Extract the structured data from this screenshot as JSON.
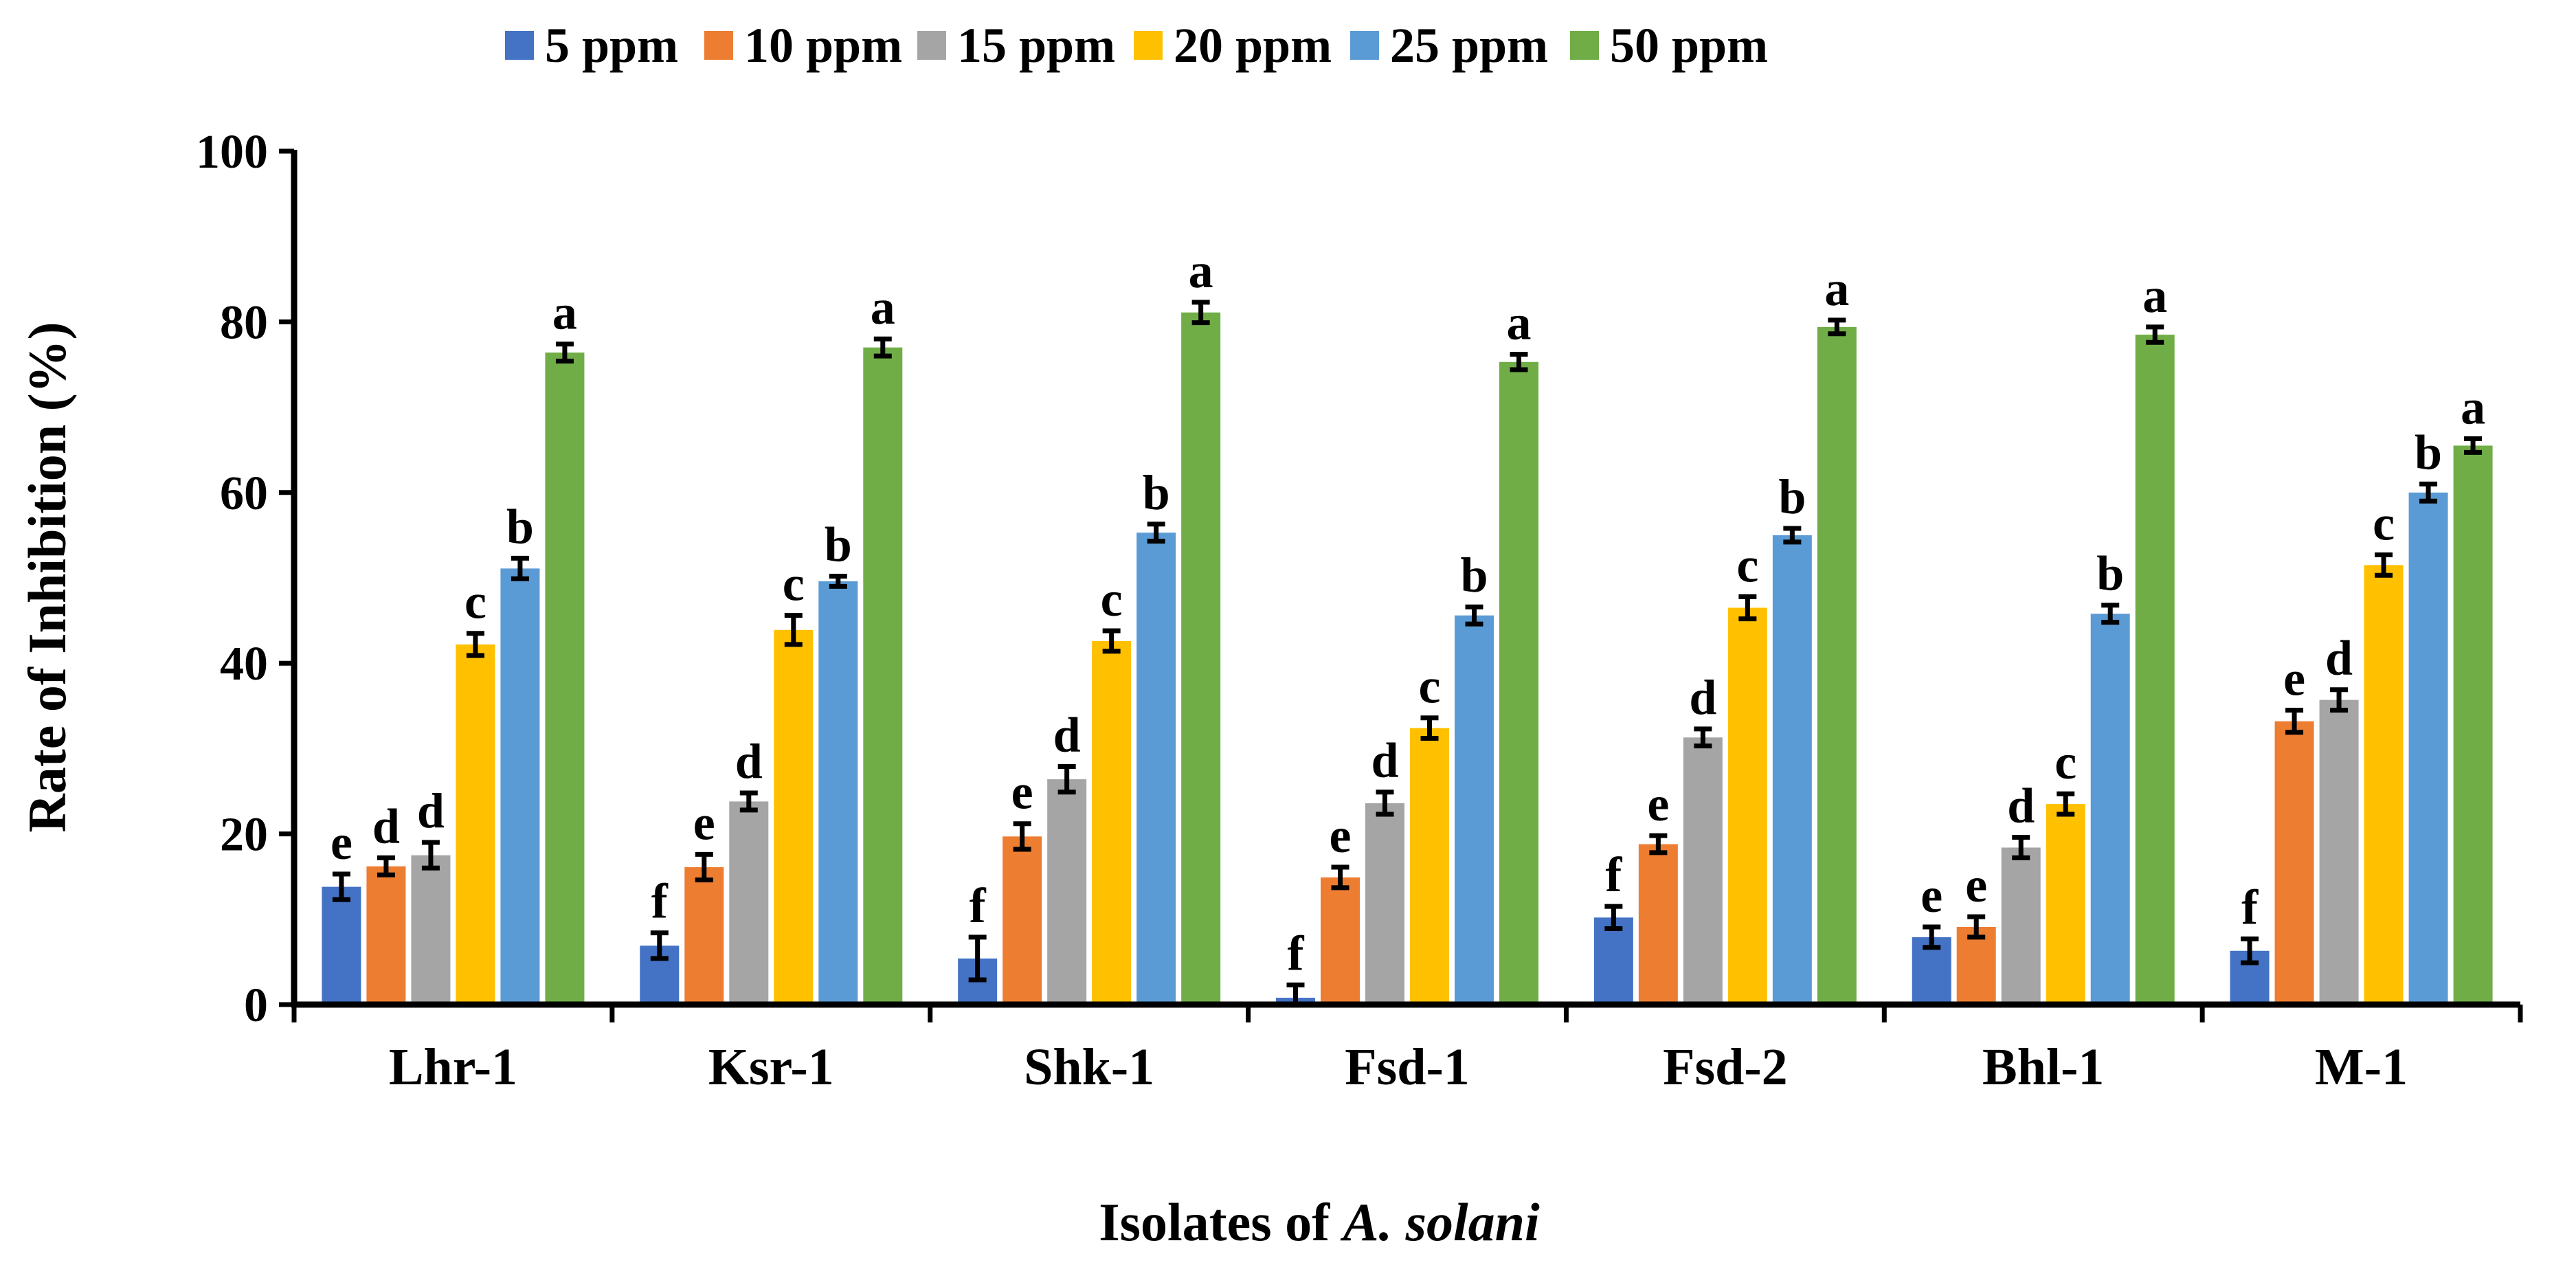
{
  "chart_data": {
    "type": "bar",
    "title": "",
    "xlabel_prefix": "Isolates of ",
    "xlabel_italic": "A. solani",
    "ylabel": "Rate of Inhibition (%)",
    "ylim": [
      0,
      100
    ],
    "yticks": [
      0,
      20,
      40,
      60,
      80,
      100
    ],
    "grid": false,
    "legend_position": "top",
    "categories": [
      "Lhr-1",
      "Ksr-1",
      "Shk-1",
      "Fsd-1",
      "Fsd-2",
      "Bhl-1",
      "M-1"
    ],
    "series": [
      {
        "name": "5 ppm",
        "color": "#4472C4",
        "values": [
          13.8,
          6.9,
          5.4,
          0.8,
          10.2,
          7.9,
          6.3
        ],
        "errors": [
          1.5,
          1.5,
          2.5,
          1.5,
          1.3,
          1.2,
          1.4
        ],
        "letters": [
          "e",
          "f",
          "f",
          "f",
          "f",
          "e",
          "f"
        ]
      },
      {
        "name": "10 ppm",
        "color": "#ED7D31",
        "values": [
          16.2,
          16.1,
          19.7,
          14.9,
          18.8,
          9.1,
          33.2
        ],
        "errors": [
          1.0,
          1.5,
          1.5,
          1.2,
          1.0,
          1.2,
          1.3
        ],
        "letters": [
          "d",
          "e",
          "e",
          "e",
          "e",
          "e",
          "e"
        ]
      },
      {
        "name": "15 ppm",
        "color": "#A5A5A5",
        "values": [
          17.5,
          23.8,
          26.4,
          23.6,
          31.3,
          18.4,
          35.7
        ],
        "errors": [
          1.5,
          1.0,
          1.5,
          1.3,
          1.0,
          1.2,
          1.2
        ],
        "letters": [
          "d",
          "d",
          "d",
          "d",
          "d",
          "d",
          "d"
        ]
      },
      {
        "name": "20 ppm",
        "color": "#FFC000",
        "values": [
          42.2,
          43.9,
          42.6,
          32.4,
          46.5,
          23.5,
          51.5
        ],
        "errors": [
          1.3,
          1.7,
          1.2,
          1.2,
          1.3,
          1.2,
          1.2
        ],
        "letters": [
          "c",
          "c",
          "c",
          "c",
          "c",
          "c",
          "c"
        ]
      },
      {
        "name": "25 ppm",
        "color": "#5B9BD5",
        "values": [
          51.1,
          49.6,
          55.3,
          45.6,
          55.0,
          45.8,
          60.0
        ],
        "errors": [
          1.2,
          0.6,
          1.0,
          1.0,
          0.8,
          1.0,
          1.0
        ],
        "letters": [
          "b",
          "b",
          "b",
          "b",
          "b",
          "b",
          "b"
        ]
      },
      {
        "name": "50 ppm",
        "color": "#70AD47",
        "values": [
          76.4,
          77.0,
          81.1,
          75.3,
          79.4,
          78.5,
          65.5
        ],
        "errors": [
          1.0,
          1.0,
          1.2,
          0.9,
          0.8,
          0.9,
          0.8
        ],
        "letters": [
          "a",
          "a",
          "a",
          "a",
          "a",
          "a",
          "a"
        ]
      }
    ]
  }
}
